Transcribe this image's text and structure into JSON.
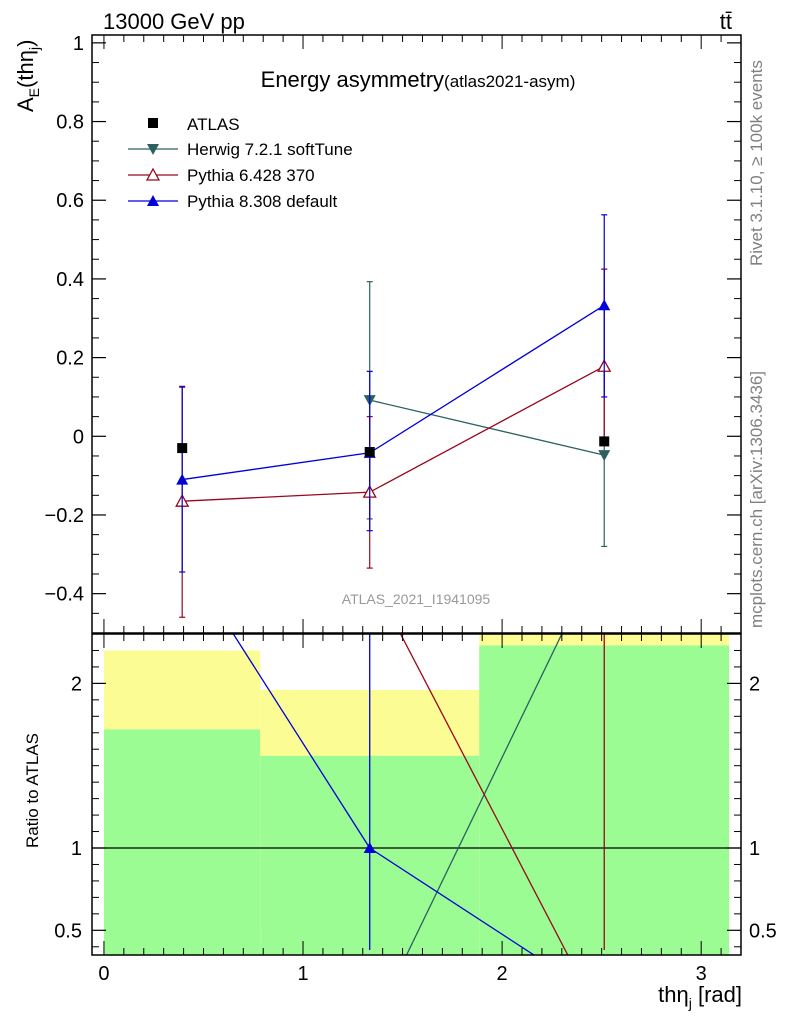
{
  "header": {
    "energy_label": "13000 GeV pp",
    "process_label": "tt̄"
  },
  "side_labels": {
    "rivet": "Rivet 3.1.10, ≥ 100k events",
    "mcplots": "mcplots.cern.ch [arXiv:1306.3436]"
  },
  "colors": {
    "atlas": "#000000",
    "herwig": "#2c6160",
    "pythia6": "#99071d",
    "pythia8": "#0000d8",
    "band_inner": "#9cfc94",
    "band_outer": "#fcfc94"
  },
  "chart_data": [
    {
      "type": "scatter",
      "title": "Energy asymmetry",
      "subtitle": "(atlas2021-asym)",
      "watermark": "ATLAS_2021_I1941095",
      "ylabel": "A",
      "ylabel_sub": "E",
      "ylabel_arg": "(th",
      "ylabel_arg_greek": "η",
      "ylabel_arg_sub": "j",
      "ylabel_arg_close": ")",
      "xlim": [
        -0.06,
        3.2
      ],
      "ylim": [
        -0.5,
        1.02
      ],
      "yticks": [
        1,
        0.8,
        0.6,
        0.4,
        0.2,
        0,
        -0.2,
        -0.4
      ],
      "ytick_labels": [
        "1",
        "0.8",
        "0.6",
        "0.4",
        "0.2",
        "0",
        "−0.2",
        "−0.4"
      ],
      "legend_position": "top-left",
      "series": [
        {
          "name": "ATLAS",
          "marker": "filled-square",
          "x": [
            0.393,
            1.335,
            2.513
          ],
          "y": [
            -0.03,
            -0.04,
            -0.013
          ],
          "yerr_low": [
            -0.03,
            -0.04,
            -0.013
          ],
          "yerr_high": [
            -0.03,
            -0.04,
            -0.013
          ],
          "xerr_low": [
            0.393,
            0.55,
            0.63
          ],
          "xerr_high": [
            0.393,
            0.55,
            0.63
          ],
          "show_xerr": false,
          "line": false
        },
        {
          "name": "Herwig 7.2.1 softTune",
          "marker": "filled-triangle-down",
          "x": [
            1.335,
            2.513
          ],
          "y": [
            0.092,
            -0.048
          ],
          "yerr_low": [
            -0.21,
            -0.28
          ],
          "yerr_high": [
            0.393,
            0.425
          ],
          "line": true
        },
        {
          "name": "Pythia 6.428 370",
          "marker": "open-triangle-up",
          "x": [
            0.393,
            1.335,
            2.513
          ],
          "y": [
            -0.165,
            -0.142,
            0.178
          ],
          "yerr_low": [
            -0.46,
            -0.335,
            -0.013
          ],
          "yerr_high": [
            0.127,
            0.05,
            0.425
          ],
          "line": true
        },
        {
          "name": "Pythia 8.308 default",
          "marker": "filled-triangle-up",
          "x": [
            0.393,
            1.335,
            2.513
          ],
          "y": [
            -0.11,
            -0.042,
            0.333
          ],
          "yerr_low": [
            -0.345,
            -0.24,
            0.1
          ],
          "yerr_high": [
            0.125,
            0.165,
            0.563
          ],
          "line": true
        }
      ]
    },
    {
      "type": "line",
      "ylabel": "Ratio to ATLAS",
      "xlabel": "th",
      "xlabel_greek": "η",
      "xlabel_sub": "j",
      "xlabel_unit": " [rad]",
      "xlim": [
        -0.06,
        3.2
      ],
      "ylim": [
        0.35,
        2.3
      ],
      "xticks": [
        0,
        1,
        2,
        3
      ],
      "xtick_labels": [
        "0",
        "1",
        "2",
        "3"
      ],
      "yticks": [
        2,
        1,
        0.5
      ],
      "ytick_labels": [
        "2",
        "1",
        "0.5"
      ],
      "reference_line": 1,
      "bands": [
        {
          "xlo": 0.0,
          "xhi": 0.785,
          "inner_lo": 0.35,
          "inner_hi": 1.72,
          "outer_lo": 0.35,
          "outer_hi": 2.2
        },
        {
          "xlo": 0.785,
          "xhi": 1.885,
          "inner_lo": 0.35,
          "inner_hi": 1.56,
          "outer_lo": 0.54,
          "outer_hi": 1.96
        },
        {
          "xlo": 1.885,
          "xhi": 3.14,
          "inner_lo": 0.35,
          "inner_hi": 2.23,
          "outer_lo": 0.35,
          "outer_hi": 2.3
        }
      ],
      "series": [
        {
          "name": "Herwig 7.2.1 softTune",
          "points": [
            [
              1.52,
              0.35
            ],
            [
              2.3,
              2.3
            ]
          ]
        },
        {
          "name": "Pythia 6.428 370",
          "points": [
            [
              1.49,
              2.3
            ],
            [
              2.33,
              0.35
            ]
          ],
          "vlines": [
            2.513
          ]
        },
        {
          "name": "Pythia 8.308 default",
          "points": [
            [
              0.65,
              2.3
            ],
            [
              1.335,
              1.0
            ],
            [
              2.16,
              0.35
            ]
          ],
          "vlines": [
            1.335
          ],
          "marker_at": [
            1.335,
            1.0
          ]
        }
      ]
    }
  ]
}
